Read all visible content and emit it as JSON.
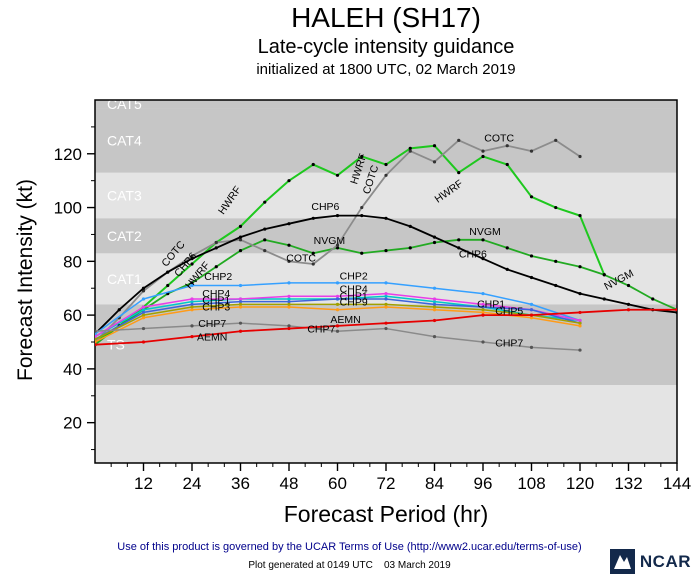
{
  "chart_data": {
    "type": "line",
    "title": "HALEH (SH17)",
    "subtitle": "Late-cycle intensity guidance",
    "init": "initialized at 1800 UTC, 02 March 2019",
    "xlabel": "Forecast Period (hr)",
    "ylabel": "Forecast Intensity (kt)",
    "xlim": [
      0,
      144
    ],
    "ylim": [
      5,
      140
    ],
    "plot_bg": "#e4e4e4",
    "band_gray": "#c6c6c6",
    "frame_color": "#000000",
    "x_major": [
      12,
      24,
      36,
      48,
      60,
      72,
      84,
      96,
      108,
      120,
      132,
      144
    ],
    "x_minor_step": 4,
    "y_major": [
      20,
      40,
      60,
      80,
      100,
      120
    ],
    "y_minor": [
      10,
      30,
      50,
      70,
      90,
      110,
      130
    ],
    "bands": [
      {
        "name": "TS",
        "from": 34,
        "to": 64,
        "fill": "#c6c6c6",
        "label_color": "#ffffff"
      },
      {
        "name": "CAT1",
        "from": 64,
        "to": 83,
        "fill": "#e4e4e4",
        "label_color": "#ffffff"
      },
      {
        "name": "CAT2",
        "from": 83,
        "to": 96,
        "fill": "#c6c6c6",
        "label_color": "#ffffff"
      },
      {
        "name": "CAT3",
        "from": 96,
        "to": 113,
        "fill": "#e4e4e4",
        "label_color": "#ffffff"
      },
      {
        "name": "CAT4",
        "from": 113,
        "to": 137,
        "fill": "#c6c6c6",
        "label_color": "#ffffff"
      },
      {
        "name": "CAT5",
        "from": 137,
        "to": 140,
        "fill": "#c6c6c6",
        "label_color": "#ffffff"
      }
    ],
    "series": [
      {
        "name": "HWRF",
        "color": "#1ec81e",
        "marker_color": "#000000",
        "width": 2,
        "points": [
          [
            0,
            50
          ],
          [
            6,
            56
          ],
          [
            12,
            63
          ],
          [
            18,
            71
          ],
          [
            24,
            79
          ],
          [
            30,
            87
          ],
          [
            36,
            93
          ],
          [
            42,
            102
          ],
          [
            48,
            110
          ],
          [
            54,
            116
          ],
          [
            60,
            112
          ],
          [
            66,
            119
          ],
          [
            72,
            116
          ],
          [
            78,
            122
          ],
          [
            84,
            123
          ],
          [
            90,
            113
          ],
          [
            96,
            119
          ],
          [
            102,
            116
          ],
          [
            108,
            104
          ],
          [
            114,
            100
          ],
          [
            120,
            97
          ],
          [
            126,
            75
          ]
        ]
      },
      {
        "name": "NVGM",
        "color": "#22aa22",
        "marker_color": "#000000",
        "width": 1.8,
        "points": [
          [
            0,
            49
          ],
          [
            6,
            56
          ],
          [
            12,
            62
          ],
          [
            18,
            68
          ],
          [
            24,
            72
          ],
          [
            30,
            78
          ],
          [
            36,
            84
          ],
          [
            42,
            88
          ],
          [
            48,
            86
          ],
          [
            54,
            83
          ],
          [
            60,
            85
          ],
          [
            66,
            83
          ],
          [
            72,
            84
          ],
          [
            78,
            85
          ],
          [
            84,
            87
          ],
          [
            90,
            88
          ],
          [
            96,
            88
          ],
          [
            102,
            85
          ],
          [
            108,
            82
          ],
          [
            114,
            80
          ],
          [
            120,
            78
          ],
          [
            126,
            75
          ],
          [
            132,
            71
          ],
          [
            138,
            66
          ],
          [
            144,
            62
          ]
        ]
      },
      {
        "name": "COTC",
        "color": "#8c8c8c",
        "marker_color": "#333333",
        "width": 1.8,
        "points": [
          [
            0,
            50
          ],
          [
            6,
            59
          ],
          [
            12,
            69
          ],
          [
            18,
            76
          ],
          [
            24,
            82
          ],
          [
            30,
            87
          ],
          [
            36,
            88
          ],
          [
            42,
            84
          ],
          [
            48,
            80
          ],
          [
            54,
            79
          ],
          [
            60,
            86
          ],
          [
            66,
            100
          ],
          [
            72,
            112
          ],
          [
            78,
            121
          ],
          [
            84,
            117
          ],
          [
            90,
            125
          ],
          [
            96,
            121
          ],
          [
            102,
            123
          ],
          [
            108,
            121
          ],
          [
            114,
            125
          ],
          [
            120,
            119
          ]
        ]
      },
      {
        "name": "CHP6",
        "color": "#000000",
        "marker_color": "#000000",
        "width": 1.8,
        "points": [
          [
            0,
            53
          ],
          [
            6,
            62
          ],
          [
            12,
            70
          ],
          [
            18,
            76
          ],
          [
            24,
            81
          ],
          [
            30,
            85
          ],
          [
            36,
            89
          ],
          [
            42,
            92
          ],
          [
            48,
            94
          ],
          [
            54,
            96
          ],
          [
            60,
            97
          ],
          [
            66,
            97
          ],
          [
            72,
            96
          ],
          [
            78,
            93
          ],
          [
            84,
            89
          ],
          [
            90,
            85
          ],
          [
            96,
            81
          ],
          [
            102,
            77
          ],
          [
            108,
            74
          ],
          [
            114,
            71
          ],
          [
            120,
            68
          ],
          [
            126,
            66
          ],
          [
            132,
            64
          ],
          [
            138,
            62
          ],
          [
            144,
            61
          ]
        ]
      },
      {
        "name": "CHP2",
        "color": "#35a0ff",
        "marker_color": "#35a0ff",
        "width": 1.5,
        "points": [
          [
            0,
            53
          ],
          [
            12,
            66
          ],
          [
            24,
            71
          ],
          [
            36,
            71
          ],
          [
            48,
            72
          ],
          [
            60,
            72
          ],
          [
            72,
            72
          ],
          [
            84,
            70
          ],
          [
            96,
            68
          ],
          [
            108,
            64
          ],
          [
            120,
            58
          ]
        ]
      },
      {
        "name": "CHP5",
        "color": "#00c8c8",
        "marker_color": "#00c8c8",
        "width": 1.5,
        "points": [
          [
            0,
            52
          ],
          [
            12,
            62
          ],
          [
            24,
            65
          ],
          [
            36,
            66
          ],
          [
            48,
            66
          ],
          [
            60,
            66
          ],
          [
            72,
            67
          ],
          [
            84,
            65
          ],
          [
            96,
            63
          ],
          [
            108,
            60
          ],
          [
            120,
            58
          ]
        ]
      },
      {
        "name": "CHP4",
        "color": "#e83ee8",
        "marker_color": "#e83ee8",
        "width": 1.5,
        "points": [
          [
            0,
            52
          ],
          [
            12,
            63
          ],
          [
            24,
            66
          ],
          [
            36,
            66
          ],
          [
            48,
            67
          ],
          [
            60,
            67
          ],
          [
            72,
            68
          ],
          [
            84,
            66
          ],
          [
            96,
            64
          ],
          [
            108,
            62
          ],
          [
            120,
            58
          ]
        ]
      },
      {
        "name": "CHP1",
        "color": "#3c64dc",
        "marker_color": "#3c64dc",
        "width": 1.5,
        "points": [
          [
            0,
            51
          ],
          [
            12,
            61
          ],
          [
            24,
            64
          ],
          [
            36,
            65
          ],
          [
            48,
            65
          ],
          [
            60,
            66
          ],
          [
            72,
            66
          ],
          [
            84,
            64
          ],
          [
            96,
            63
          ],
          [
            108,
            62
          ],
          [
            120,
            57
          ]
        ]
      },
      {
        "name": "CHP9",
        "color": "#a0a000",
        "marker_color": "#a0a000",
        "width": 1.5,
        "points": [
          [
            0,
            51
          ],
          [
            12,
            60
          ],
          [
            24,
            63
          ],
          [
            36,
            64
          ],
          [
            48,
            64
          ],
          [
            60,
            64
          ],
          [
            72,
            64
          ],
          [
            84,
            63
          ],
          [
            96,
            62
          ],
          [
            108,
            60
          ],
          [
            120,
            57
          ]
        ]
      },
      {
        "name": "CHP3",
        "color": "#ff9b19",
        "marker_color": "#ff9b19",
        "width": 1.5,
        "points": [
          [
            0,
            50
          ],
          [
            12,
            59
          ],
          [
            24,
            62
          ],
          [
            36,
            63
          ],
          [
            48,
            63
          ],
          [
            60,
            62
          ],
          [
            72,
            63
          ],
          [
            84,
            62
          ],
          [
            96,
            61
          ],
          [
            108,
            59
          ],
          [
            120,
            56
          ]
        ]
      },
      {
        "name": "CHP7",
        "color": "#8a8a8a",
        "marker_color": "#555555",
        "width": 1.5,
        "points": [
          [
            0,
            54
          ],
          [
            12,
            55
          ],
          [
            24,
            56
          ],
          [
            36,
            57
          ],
          [
            48,
            56
          ],
          [
            60,
            54
          ],
          [
            72,
            55
          ],
          [
            84,
            52
          ],
          [
            96,
            50
          ],
          [
            108,
            48
          ],
          [
            120,
            47
          ]
        ]
      },
      {
        "name": "AEMN",
        "color": "#e60000",
        "marker_color": "#e60000",
        "width": 1.8,
        "points": [
          [
            0,
            49
          ],
          [
            12,
            50
          ],
          [
            24,
            52
          ],
          [
            36,
            54
          ],
          [
            48,
            55
          ],
          [
            60,
            56
          ],
          [
            72,
            57
          ],
          [
            84,
            58
          ],
          [
            96,
            60
          ],
          [
            108,
            60
          ],
          [
            120,
            61
          ],
          [
            132,
            62
          ],
          [
            144,
            62
          ]
        ]
      }
    ],
    "line_labels": [
      {
        "text": "COTC",
        "x": 20,
        "y": 82,
        "rot": -50
      },
      {
        "text": "CHP6",
        "x": 23,
        "y": 78,
        "rot": -50
      },
      {
        "text": "HWRF",
        "x": 26,
        "y": 74,
        "rot": -50
      },
      {
        "text": "HWRF",
        "x": 34,
        "y": 102,
        "rot": -55
      },
      {
        "text": "CHP6",
        "x": 57,
        "y": 99,
        "rot": 0
      },
      {
        "text": "COTC",
        "x": 51,
        "y": 80,
        "rot": 0
      },
      {
        "text": "NVGM",
        "x": 58,
        "y": 86.5,
        "rot": 0
      },
      {
        "text": "HWRF",
        "x": 66,
        "y": 114,
        "rot": -72
      },
      {
        "text": "COTC",
        "x": 69,
        "y": 110,
        "rot": -72
      },
      {
        "text": "COTC",
        "x": 100,
        "y": 124.5,
        "rot": 0
      },
      {
        "text": "HWRF",
        "x": 88,
        "y": 105,
        "rot": -35
      },
      {
        "text": "NVGM",
        "x": 96.5,
        "y": 89.8,
        "rot": 0
      },
      {
        "text": "CHP6",
        "x": 93.5,
        "y": 81.5,
        "rot": 0
      },
      {
        "text": "NVGM",
        "x": 130,
        "y": 72,
        "rot": -28
      },
      {
        "text": "CHP2",
        "x": 30.5,
        "y": 73,
        "rot": 0
      },
      {
        "text": "CHP2",
        "x": 64,
        "y": 73.3,
        "rot": 0
      },
      {
        "text": "CHP4",
        "x": 30,
        "y": 66.8,
        "rot": 0
      },
      {
        "text": "CHP4",
        "x": 64,
        "y": 68.5,
        "rot": 0
      },
      {
        "text": "CHP1",
        "x": 30,
        "y": 64.3,
        "rot": 0
      },
      {
        "text": "CHP1",
        "x": 64,
        "y": 65.8,
        "rot": 0
      },
      {
        "text": "CHP3",
        "x": 30,
        "y": 61.8,
        "rot": 0
      },
      {
        "text": "CHP9",
        "x": 64,
        "y": 63.5,
        "rot": 0
      },
      {
        "text": "CHP7",
        "x": 29,
        "y": 55.5,
        "rot": 0
      },
      {
        "text": "CHP7",
        "x": 56,
        "y": 53.5,
        "rot": 0
      },
      {
        "text": "AEMN",
        "x": 29,
        "y": 50.5,
        "rot": 0
      },
      {
        "text": "AEMN",
        "x": 62,
        "y": 57,
        "rot": 0
      },
      {
        "text": "CHP1",
        "x": 98,
        "y": 62.8,
        "rot": 0
      },
      {
        "text": "CHP5",
        "x": 102.5,
        "y": 60.2,
        "rot": 0
      },
      {
        "text": "CHP7",
        "x": 102.5,
        "y": 48.3,
        "rot": 0
      }
    ]
  },
  "footer": {
    "terms": "Use of this product is governed by the UCAR Terms of Use (http://www2.ucar.edu/terms-of-use)",
    "generated": "Plot generated at 0149 UTC    03 March 2019",
    "logo_text": "NCAR"
  }
}
